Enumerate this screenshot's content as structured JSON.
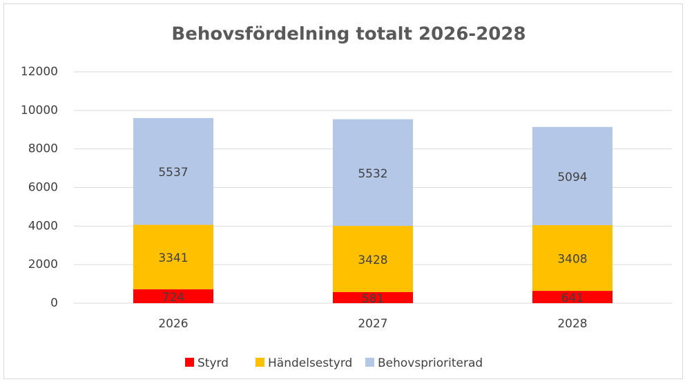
{
  "chart_data": {
    "type": "stacked_bar",
    "title": "Behovsfördelning totalt 2026-2028",
    "categories": [
      "2026",
      "2027",
      "2028"
    ],
    "series": [
      {
        "name": "Styrd",
        "color": "#ff0000",
        "values": [
          724,
          581,
          641
        ]
      },
      {
        "name": "Händelsestyrd",
        "color": "#ffc000",
        "values": [
          3341,
          3428,
          3408
        ]
      },
      {
        "name": "Behovsprioriterad",
        "color": "#b4c7e7",
        "values": [
          5537,
          5532,
          5094
        ]
      }
    ],
    "ylim": [
      0,
      12000
    ],
    "yticks": [
      0,
      2000,
      4000,
      6000,
      8000,
      10000,
      12000
    ],
    "grid": true,
    "legend": "bottom"
  }
}
